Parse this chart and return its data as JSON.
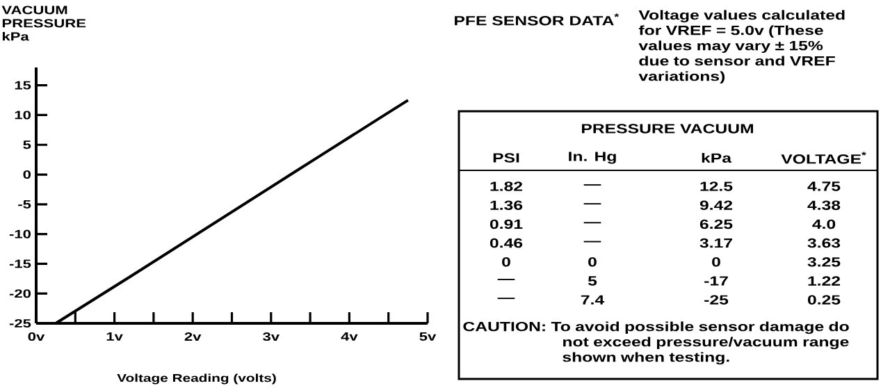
{
  "chart_data": [
    {
      "type": "line",
      "ylabel": "VACUUM PRESSURE kPa",
      "xlabel": "Voltage Reading (volts)",
      "color": "#000000",
      "x": [
        0.25,
        1.22,
        3.25,
        3.63,
        4.0,
        4.38,
        4.75
      ],
      "values": [
        -25,
        -17,
        0,
        3.17,
        6.25,
        9.42,
        12.5
      ],
      "xlim": [
        0,
        5
      ],
      "ylim": [
        -25,
        18
      ],
      "xticks": [
        {
          "value": 0,
          "label": "0v"
        },
        {
          "value": 0.5,
          "label": null
        },
        {
          "value": 1,
          "label": "1v"
        },
        {
          "value": 1.5,
          "label": null
        },
        {
          "value": 2,
          "label": "2v"
        },
        {
          "value": 2.5,
          "label": null
        },
        {
          "value": 3,
          "label": "3v"
        },
        {
          "value": 3.5,
          "label": null
        },
        {
          "value": 4,
          "label": "4v"
        },
        {
          "value": 4.5,
          "label": null
        },
        {
          "value": 5,
          "label": "5v"
        }
      ],
      "yticks": [
        15,
        10,
        5,
        0,
        -5,
        -10,
        -15,
        -20,
        -25
      ]
    },
    {
      "type": "other",
      "title": "PFE SENSOR DATA$^{*}$",
      "subtitle": "Voltage values calculated for VREF = 5.0v (These values may vary ± 15% due to sensor and VREF variations)",
      "annotations": [
        "PRESSURE VACUUM",
        "PSI",
        "In. Hg",
        "kPa",
        "VOLTAGE$^{*}$",
        "1.82",
        "—",
        "12.5",
        "4.75",
        "1.36",
        "—",
        "9.42",
        "4.38",
        "0.91",
        "—",
        "6.25",
        "4.0",
        "0.46",
        "—",
        "3.17",
        "3.63",
        "0",
        "0",
        "0",
        "3.25",
        "—",
        "5",
        "-17",
        "1.22",
        "—",
        "7.4",
        "-25",
        "0.25",
        "CAUTION: To avoid possible sensor damage do not exceed pressure/vacuum range shown when testing."
      ]
    }
  ]
}
